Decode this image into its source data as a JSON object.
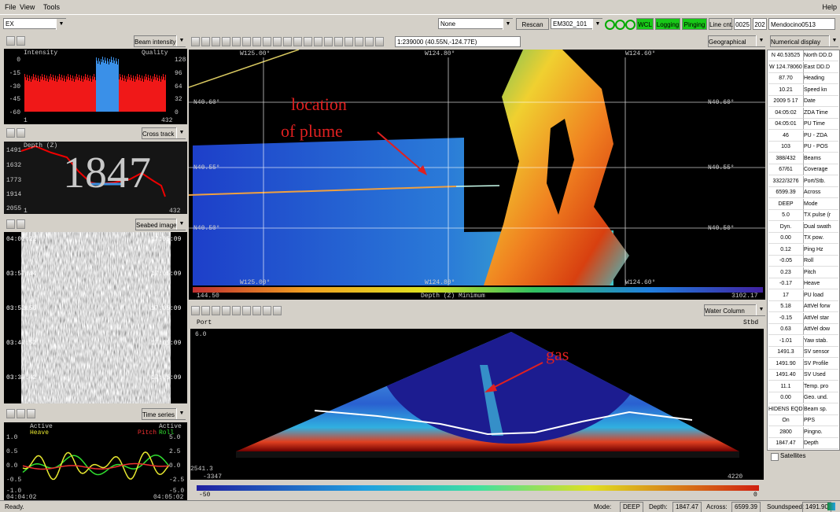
{
  "menu": [
    "File",
    "View",
    "Tools"
  ],
  "help": "Help",
  "toolbar": {
    "survey": "EX",
    "source": "None",
    "rescan": "Rescan",
    "echosounder": "EM302_101",
    "wcl": "WCL",
    "logging": "Logging",
    "pinging": "Pinging",
    "line_count_label": "Line cnt.",
    "line_count": "0025",
    "line_number": "202",
    "line_name": "Mendocino0513"
  },
  "beam_intensity": {
    "selector": "Beam intensity",
    "title_left": "Intensity",
    "title_right": "Quality",
    "left_ticks": [
      "0",
      "-15",
      "-30",
      "-45",
      "-60"
    ],
    "right_ticks": [
      "128",
      "96",
      "64",
      "32",
      "0"
    ],
    "x_ticks": [
      "1",
      "432"
    ]
  },
  "cross_track": {
    "selector": "Cross track",
    "axis_label": "Depth (Z)",
    "ticks": [
      "1491",
      "1632",
      "1773",
      "1914",
      "2055"
    ],
    "depth": "1847",
    "x_ticks": [
      "1",
      "432"
    ]
  },
  "seabed_image": {
    "selector": "Seabed image",
    "left_times": [
      "04:02:22",
      "03:57:44",
      "03:52:56",
      "03:47:52",
      "03:37:42"
    ],
    "right_times": [
      "17:05:09",
      "17:05:09",
      "17:05:09",
      "17:05:09",
      "17:05:09"
    ]
  },
  "time_series": {
    "selector": "Time series",
    "left_status": "Active",
    "left_series": "Heave",
    "right_status": "Active",
    "right_series": [
      "Pitch",
      "Roll"
    ],
    "left_ticks": [
      "1.0",
      "0.5",
      "0.0",
      "-0.5",
      "-1.0"
    ],
    "right_ticks": [
      "5.0",
      "2.5",
      "0.0",
      "-2.5",
      "-5.0"
    ],
    "x_ticks": [
      "04:04:02",
      "04:05:02"
    ]
  },
  "map": {
    "scale": "1:239000 (40.55N,-124.77E)",
    "view": "Geographical",
    "lon_labels": [
      "W125.00°",
      "W124.80°",
      "W124.60°"
    ],
    "lat_labels": [
      "N40.60°",
      "N40.55°",
      "N40.50°"
    ],
    "annotation": [
      "location",
      "of plume"
    ],
    "colorbar": {
      "min": "144.50",
      "label": "Depth (Z) Minimum",
      "max": "3102.17"
    }
  },
  "water_column": {
    "selector": "Water Column",
    "port": "Port",
    "stbd": "Stbd",
    "top": "6.0",
    "bottom": "2541.3",
    "x_min": "-3347",
    "x_max": "4220",
    "annotation": "gas",
    "colorbar": {
      "min": "-50",
      "max": "0"
    }
  },
  "numerical": {
    "selector": "Numerical display",
    "rows": [
      [
        "N 40.53525",
        "North DD.D"
      ],
      [
        "W 124.78060",
        "East DD.D"
      ],
      [
        "87.70",
        "Heading"
      ],
      [
        "10.21",
        "Speed kn"
      ],
      [
        "2009 5 17",
        "Date"
      ],
      [
        "04:05:02",
        "ZDA Time"
      ],
      [
        "04:05:01",
        "PU Time"
      ],
      [
        "46",
        "PU - ZDA"
      ],
      [
        "103",
        "PU - POS"
      ],
      [
        "388/432",
        "Beams"
      ],
      [
        "67/61",
        "Coverage"
      ],
      [
        "3322/3276",
        "Port/Stb."
      ],
      [
        "6599.39",
        "Across"
      ],
      [
        "DEEP",
        "Mode"
      ],
      [
        "5.0",
        "TX pulse (r"
      ],
      [
        "Dyn.",
        "Dual swath"
      ],
      [
        "0.00",
        "TX pow."
      ],
      [
        "0.12",
        "Ping Hz"
      ],
      [
        "-0.05",
        "Roll"
      ],
      [
        "0.23",
        "Pitch"
      ],
      [
        "-0.17",
        "Heave"
      ],
      [
        "17",
        "PU load"
      ],
      [
        "5.18",
        "AttVel forw"
      ],
      [
        "-0.15",
        "AttVel star"
      ],
      [
        "0.63",
        "AttVel dow"
      ],
      [
        "-1.01",
        "Yaw stab."
      ],
      [
        "1491.3",
        "SV sensor"
      ],
      [
        "1491.90",
        "SV Profile"
      ],
      [
        "1491.40",
        "SV Used"
      ],
      [
        "11.1",
        "Temp. pro"
      ],
      [
        "0.00",
        "Geo. und."
      ],
      [
        "HIDENS EQDIST",
        "Beam sp."
      ],
      [
        "On",
        "PPS"
      ],
      [
        "2800",
        "Pingno."
      ],
      [
        "1847.47",
        "Depth"
      ]
    ],
    "satellites": "Satellites"
  },
  "status": {
    "message": "Ready.",
    "fields": [
      [
        "Mode:",
        "DEEP"
      ],
      [
        "Depth:",
        "1847.47"
      ],
      [
        "Across:",
        "6599.39"
      ],
      [
        "Soundspeed:",
        "1491.90"
      ]
    ]
  }
}
